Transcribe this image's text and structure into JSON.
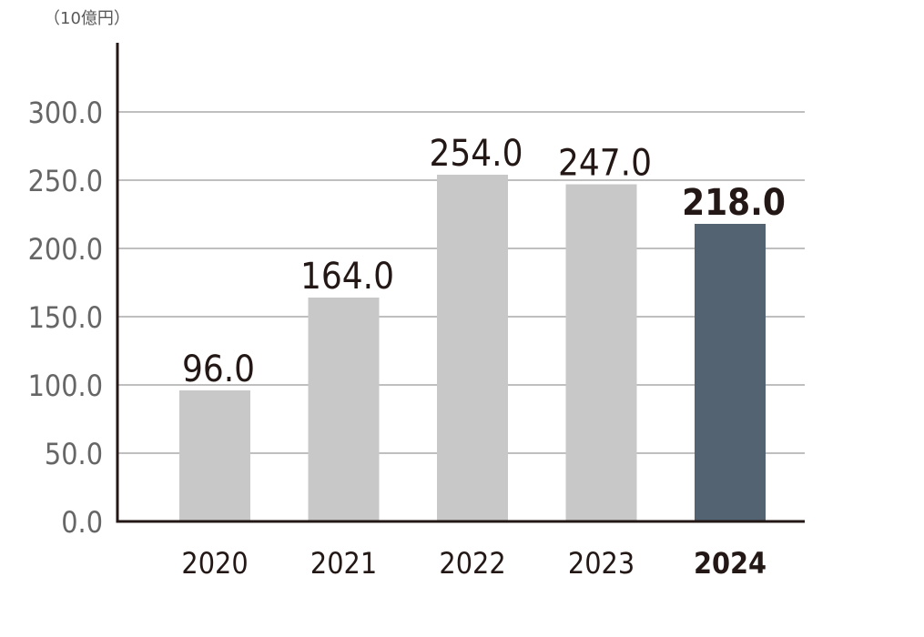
{
  "chart_data": {
    "type": "bar",
    "unit_label": "（10億円）",
    "categories": [
      "2020",
      "2021",
      "2022",
      "2023",
      "2024"
    ],
    "values": [
      96.0,
      164.0,
      254.0,
      247.0,
      218.0
    ],
    "value_labels": [
      "96.0",
      "164.0",
      "254.0",
      "247.0",
      "218.0"
    ],
    "highlight_index": 4,
    "yticks": [
      "0.0",
      "50.0",
      "100.0",
      "150.0",
      "200.0",
      "250.0",
      "300.0"
    ],
    "ylim": [
      0,
      350
    ],
    "grid": true,
    "colors": {
      "bar": "#c8c8c8",
      "highlight": "#546371",
      "axis": "#231815",
      "grid": "#aaaaaa"
    }
  }
}
